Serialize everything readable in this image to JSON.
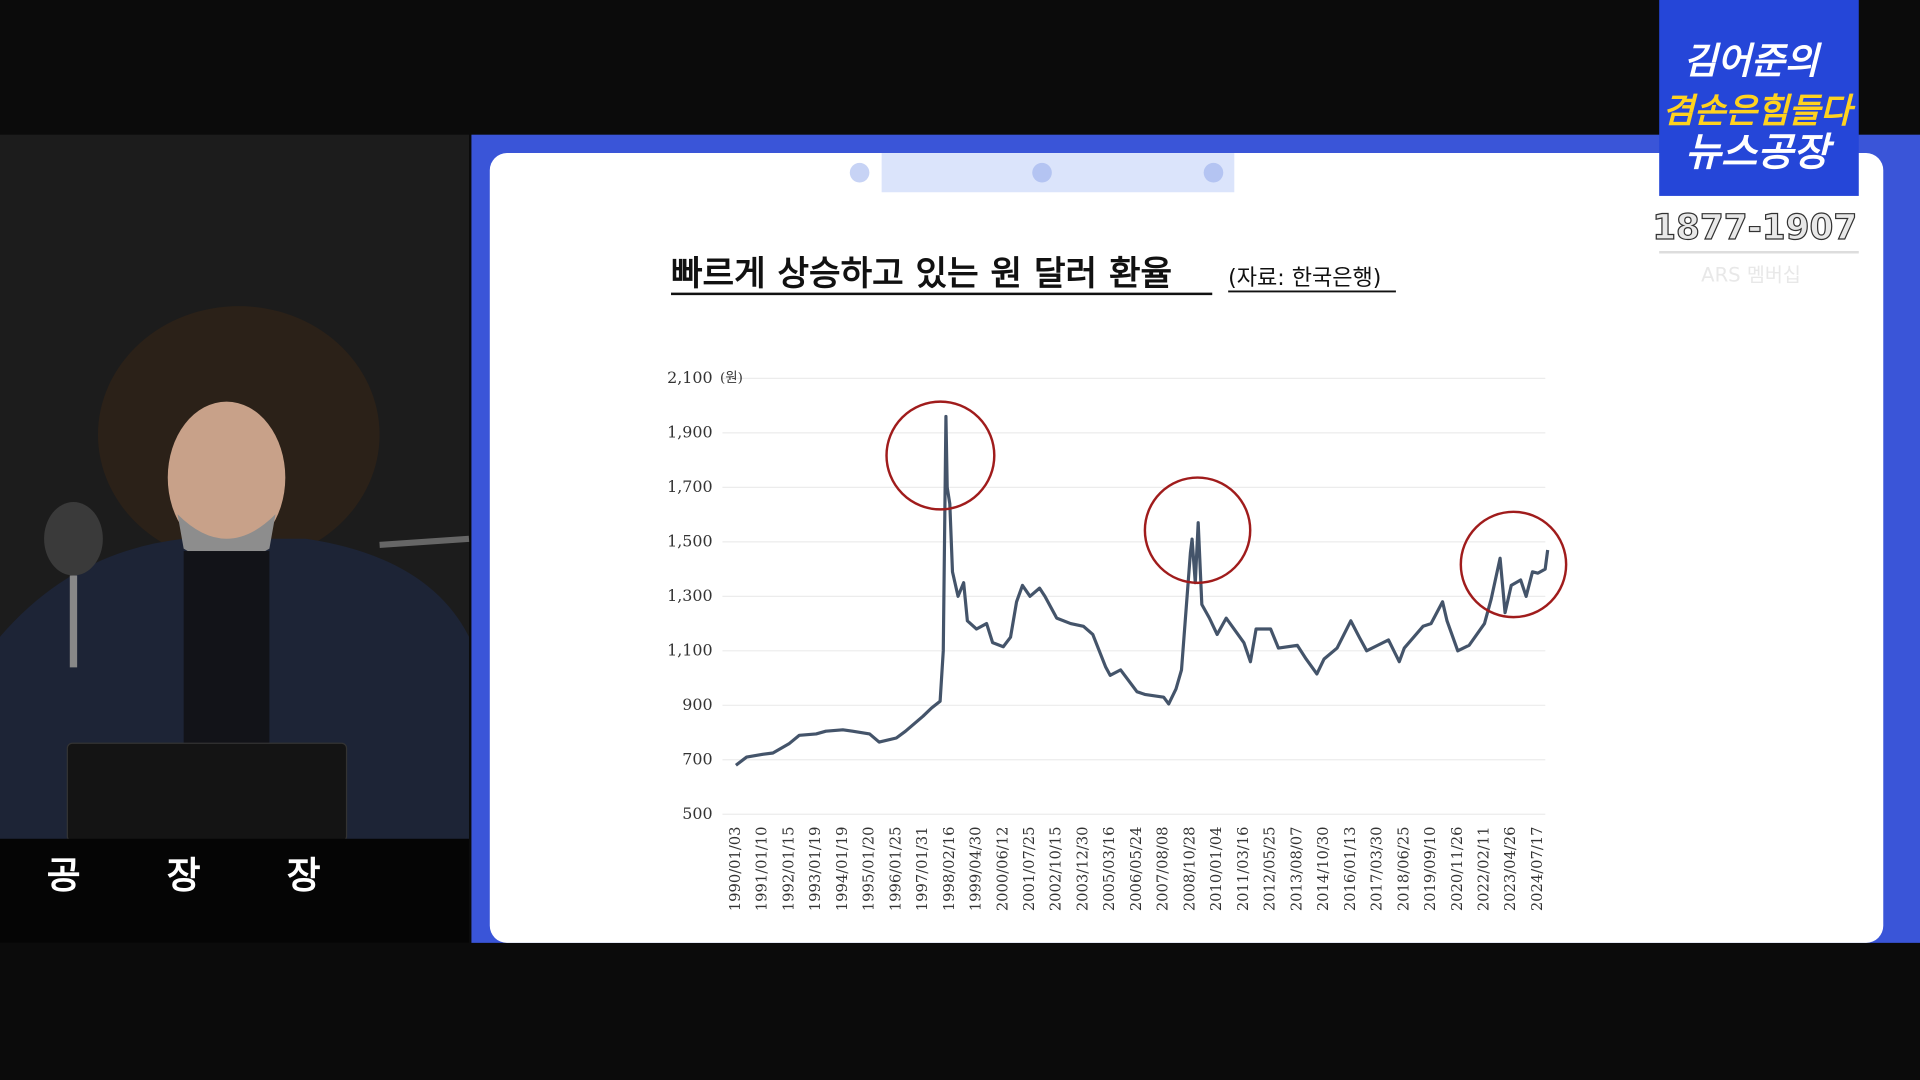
{
  "broadcast": {
    "logo_top": "김어준의",
    "logo_middle": "겸손은힘들다",
    "logo_bottom": "뉴스공장",
    "phone": "1877-1907",
    "membership": "ARS 멤버십",
    "desk_sign": "공 장 장"
  },
  "chart_data": {
    "type": "line",
    "title": "빠르게 상승하고 있는 원 달러 환율",
    "subtitle": "(자료: 한국은행)",
    "y_unit": "(원)",
    "color": "#44546a",
    "grid": true,
    "x": [
      "1990/01/03",
      "1990/06/01",
      "1991/01/10",
      "1991/06/01",
      "1992/01/15",
      "1992/06/01",
      "1993/01/19",
      "1993/06/01",
      "1994/01/19",
      "1994/06/01",
      "1995/01/20",
      "1995/06/01",
      "1996/01/25",
      "1996/06/01",
      "1997/01/31",
      "1997/06/01",
      "1997/10/01",
      "1997/11/15",
      "1997/12/23",
      "1998/01/10",
      "1998/02/16",
      "1998/04/01",
      "1998/07/01",
      "1998/10/01",
      "1998/12/01",
      "1999/04/30",
      "1999/10/01",
      "2000/01/01",
      "2000/06/12",
      "2000/10/01",
      "2001/01/01",
      "2001/04/01",
      "2001/07/25",
      "2002/01/01",
      "2002/04/01",
      "2002/10/15",
      "2003/06/01",
      "2003/12/30",
      "2004/06/01",
      "2005/01/01",
      "2005/03/16",
      "2005/09/01",
      "2006/05/24",
      "2006/10/01",
      "2007/08/08",
      "2007/10/31",
      "2008/03/01",
      "2008/06/01",
      "2008/10/28",
      "2008/11/24",
      "2009/01/15",
      "2009/03/03",
      "2009/05/01",
      "2009/09/01",
      "2010/01/04",
      "2010/06/01",
      "2011/03/16",
      "2011/07/01",
      "2011/10/01",
      "2012/05/25",
      "2012/10/01",
      "2013/08/07",
      "2014/01/01",
      "2014/07/01",
      "2014/10/30",
      "2015/06/01",
      "2016/01/13",
      "2016/06/01",
      "2016/10/01",
      "2017/03/30",
      "2017/10/01",
      "2018/04/01",
      "2018/06/25",
      "2019/05/01",
      "2019/09/10",
      "2020/03/19",
      "2020/06/01",
      "2020/11/26",
      "2021/06/01",
      "2022/02/11",
      "2022/06/01",
      "2022/10/25",
      "2023/01/15",
      "2023/04/26",
      "2023/10/01",
      "2024/01/01",
      "2024/04/16",
      "2024/07/17",
      "2024/11/15",
      "2024/12/27"
    ],
    "values": [
      680,
      710,
      720,
      725,
      760,
      790,
      795,
      805,
      810,
      805,
      795,
      765,
      780,
      805,
      860,
      890,
      915,
      1100,
      1960,
      1700,
      1640,
      1390,
      1300,
      1350,
      1210,
      1180,
      1200,
      1130,
      1115,
      1150,
      1280,
      1340,
      1300,
      1330,
      1300,
      1220,
      1200,
      1190,
      1160,
      1040,
      1010,
      1030,
      950,
      940,
      930,
      905,
      960,
      1030,
      1460,
      1510,
      1350,
      1570,
      1270,
      1220,
      1160,
      1220,
      1130,
      1060,
      1180,
      1180,
      1110,
      1120,
      1070,
      1015,
      1070,
      1110,
      1210,
      1150,
      1100,
      1120,
      1140,
      1060,
      1110,
      1190,
      1200,
      1280,
      1210,
      1100,
      1120,
      1200,
      1290,
      1440,
      1240,
      1340,
      1360,
      1300,
      1390,
      1385,
      1400,
      1470
    ],
    "xticks": [
      "1990/01/03",
      "1991/01/10",
      "1992/01/15",
      "1993/01/19",
      "1994/01/19",
      "1995/01/20",
      "1996/01/25",
      "1997/01/31",
      "1998/02/16",
      "1999/04/30",
      "2000/06/12",
      "2001/07/25",
      "2002/10/15",
      "2003/12/30",
      "2005/03/16",
      "2006/05/24",
      "2007/08/08",
      "2008/10/28",
      "2010/01/04",
      "2011/03/16",
      "2012/05/25",
      "2013/08/07",
      "2014/10/30",
      "2016/01/13",
      "2017/03/30",
      "2018/06/25",
      "2019/09/10",
      "2020/11/26",
      "2022/02/11",
      "2023/04/26",
      "2024/07/17"
    ],
    "xlim": [
      "1990/01/03",
      "2024/12/27"
    ],
    "ylim": [
      500,
      2100
    ],
    "yticks": [
      500,
      700,
      900,
      {
        "value": 1100,
        "label": "1,100"
      },
      {
        "value": 1300,
        "label": "1,300"
      },
      {
        "value": 1500,
        "label": "1,500"
      },
      {
        "value": 1700,
        "label": "1,700"
      },
      {
        "value": 1900,
        "label": "1,900"
      },
      {
        "value": 2100,
        "label": "2,100"
      }
    ]
  }
}
